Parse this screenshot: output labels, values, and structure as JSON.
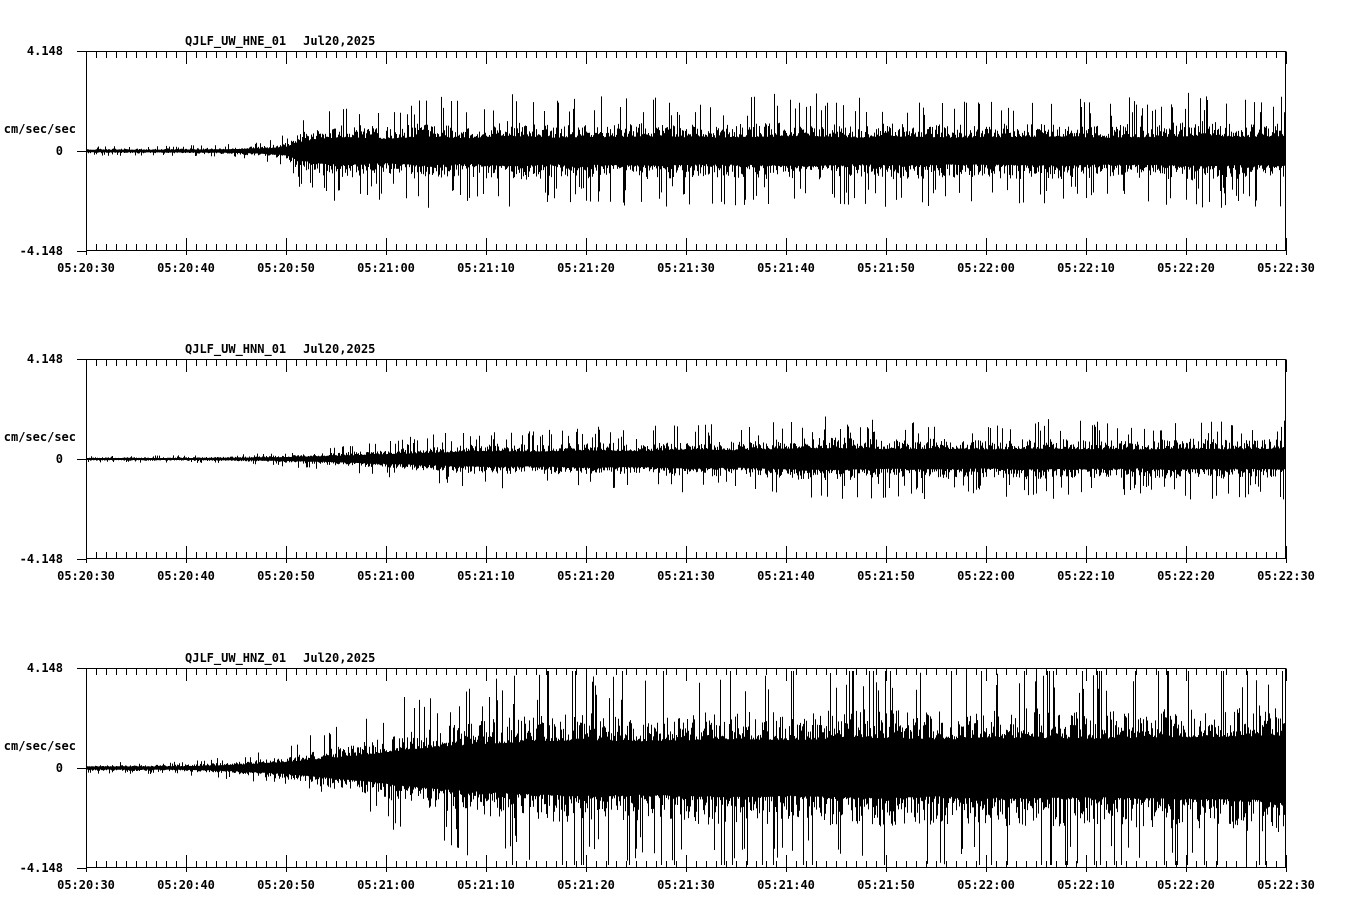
{
  "figure": {
    "background_color": "#ffffff",
    "ink_color": "#000000"
  },
  "chart_data": [
    {
      "type": "seismogram-line",
      "title": "QJLF_UW_HNE_01",
      "date_label": "Jul20,2025",
      "ylabel": "cm/sec/sec",
      "ylim": [
        -4.148,
        4.148
      ],
      "yticks": [
        {
          "value": 4.148,
          "label": "4.148"
        },
        {
          "value": 0,
          "label": "0"
        },
        {
          "value": -4.148,
          "label": "-4.148"
        }
      ],
      "xticks": [
        "05:20:30",
        "05:20:40",
        "05:20:50",
        "05:21:00",
        "05:21:10",
        "05:21:20",
        "05:21:30",
        "05:21:40",
        "05:21:50",
        "05:22:00",
        "05:22:10",
        "05:22:20",
        "05:22:30"
      ],
      "x_major_interval_s": 10,
      "x_minor_interval_s": 1,
      "duration_s": 120,
      "grid": false,
      "seed": 101,
      "amplitude_envelope": {
        "t_s": [
          0,
          8,
          14,
          18,
          20,
          21,
          23,
          26,
          30,
          34,
          38,
          42,
          47,
          52,
          57,
          62,
          67,
          72,
          77,
          82,
          87,
          92,
          97,
          102,
          107,
          112,
          116,
          120
        ],
        "amp": [
          0.1,
          0.11,
          0.14,
          0.22,
          0.35,
          0.7,
          1.0,
          1.15,
          1.0,
          1.2,
          1.05,
          1.25,
          1.1,
          1.15,
          1.2,
          1.1,
          1.15,
          1.25,
          1.1,
          1.2,
          1.1,
          1.15,
          1.2,
          1.1,
          1.15,
          1.25,
          1.15,
          1.2
        ]
      }
    },
    {
      "type": "seismogram-line",
      "title": "QJLF_UW_HNN_01",
      "date_label": "Jul20,2025",
      "ylabel": "cm/sec/sec",
      "ylim": [
        -4.148,
        4.148
      ],
      "yticks": [
        {
          "value": 4.148,
          "label": "4.148"
        },
        {
          "value": 0,
          "label": "0"
        },
        {
          "value": -4.148,
          "label": "-4.148"
        }
      ],
      "xticks": [
        "05:20:30",
        "05:20:40",
        "05:20:50",
        "05:21:00",
        "05:21:10",
        "05:21:20",
        "05:21:30",
        "05:21:40",
        "05:21:50",
        "05:22:00",
        "05:22:10",
        "05:22:20",
        "05:22:30"
      ],
      "x_major_interval_s": 10,
      "x_minor_interval_s": 1,
      "duration_s": 120,
      "grid": false,
      "seed": 202,
      "amplitude_envelope": {
        "t_s": [
          0,
          10,
          16,
          20,
          24,
          28,
          32,
          36,
          40,
          45,
          50,
          55,
          60,
          65,
          70,
          75,
          80,
          85,
          90,
          95,
          100,
          105,
          110,
          115,
          120
        ],
        "amp": [
          0.07,
          0.08,
          0.11,
          0.16,
          0.24,
          0.35,
          0.45,
          0.55,
          0.65,
          0.6,
          0.72,
          0.65,
          0.78,
          0.72,
          0.85,
          0.9,
          0.8,
          0.85,
          0.78,
          0.85,
          0.8,
          0.78,
          0.85,
          0.8,
          0.85
        ]
      }
    },
    {
      "type": "seismogram-line",
      "title": "QJLF_UW_HNZ_01",
      "date_label": "Jul20,2025",
      "ylabel": "cm/sec/sec",
      "ylim": [
        -4.148,
        4.148
      ],
      "yticks": [
        {
          "value": 4.148,
          "label": "4.148"
        },
        {
          "value": 0,
          "label": "0"
        },
        {
          "value": -4.148,
          "label": "-4.148"
        }
      ],
      "xticks": [
        "05:20:30",
        "05:20:40",
        "05:20:50",
        "05:21:00",
        "05:21:10",
        "05:21:20",
        "05:21:30",
        "05:21:40",
        "05:21:50",
        "05:22:00",
        "05:22:10",
        "05:22:20",
        "05:22:30"
      ],
      "x_major_interval_s": 10,
      "x_minor_interval_s": 1,
      "duration_s": 120,
      "grid": false,
      "seed": 303,
      "amplitude_envelope": {
        "t_s": [
          0,
          8,
          12,
          16,
          20,
          24,
          28,
          32,
          36,
          40,
          45,
          50,
          55,
          60,
          65,
          70,
          75,
          80,
          85,
          90,
          95,
          100,
          105,
          110,
          115,
          120
        ],
        "amp": [
          0.12,
          0.13,
          0.18,
          0.3,
          0.5,
          0.8,
          1.1,
          1.5,
          1.8,
          2.0,
          2.2,
          2.3,
          2.2,
          2.3,
          2.4,
          2.3,
          2.4,
          2.5,
          2.35,
          2.45,
          2.5,
          2.4,
          2.5,
          2.55,
          2.6,
          2.7
        ]
      }
    }
  ]
}
